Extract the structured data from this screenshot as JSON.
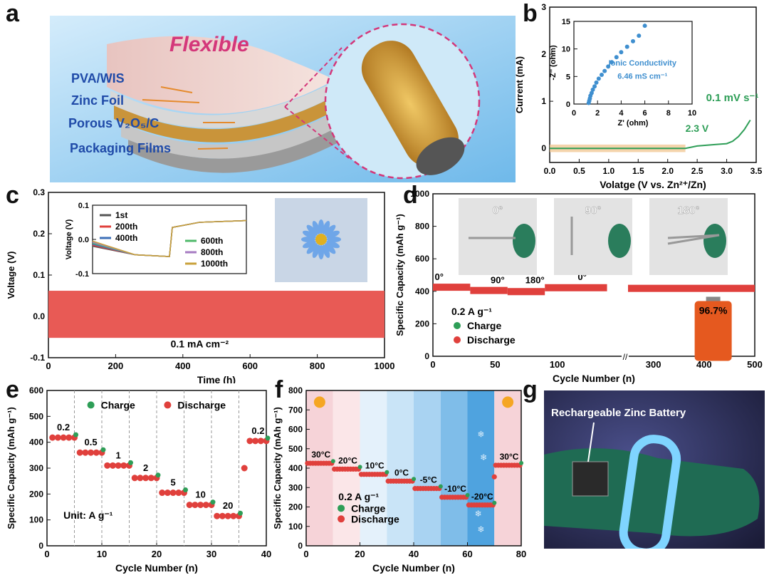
{
  "panel_letters": {
    "a": "a",
    "b": "b",
    "c": "c",
    "d": "d",
    "e": "e",
    "f": "f",
    "g": "g"
  },
  "panel_a": {
    "title": "Flexible",
    "layers": [
      "PVA/WIS",
      "Zinc Foil",
      "Porous V₂O₅/C",
      "Packaging Films"
    ]
  },
  "panel_g": {
    "label": "Rechargeable Zinc Battery"
  },
  "panel_c": {
    "image_labels": {
      "current": "0.1 mA cm⁻²"
    },
    "inset_legend": [
      "1st",
      "200th",
      "400th",
      "600th",
      "800th",
      "1000th"
    ],
    "inset_colors": [
      "#555555",
      "#e0403c",
      "#3d6fb8",
      "#4fb96a",
      "#a67bc2",
      "#c9a13a"
    ]
  },
  "panel_d": {
    "photo_angles": [
      "0°",
      "90°",
      "180°"
    ],
    "segment_angles": [
      "0°",
      "90°",
      "180°",
      "0°"
    ],
    "rate": "0.2 A g⁻¹",
    "legend": [
      "Charge",
      "Discharge"
    ],
    "retention": "96.7%"
  },
  "panel_e": {
    "legend": [
      "Charge",
      "Discharge"
    ],
    "unit": "Unit: A g⁻¹",
    "rate_labels": [
      "0.2",
      "0.5",
      "1",
      "2",
      "5",
      "10",
      "20",
      "0.2"
    ]
  },
  "panel_f": {
    "rate": "0.2 A g⁻¹",
    "legend": [
      "Charge",
      "Discharge"
    ],
    "temp_labels": [
      "30°C",
      "20°C",
      "10°C",
      "0°C",
      "-5°C",
      "-10°C",
      "-20°C",
      "30°C"
    ]
  },
  "chart_data": [
    {
      "id": "b",
      "type": "line",
      "xlabel": "Volatge (V vs. Zn²⁺/Zn)",
      "ylabel": "Current (mA)",
      "xlim": [
        0.0,
        3.5
      ],
      "ylim": [
        -0.3,
        3.0
      ],
      "xticks": [
        "0.0",
        "0.5",
        "1.0",
        "1.5",
        "2.0",
        "2.5",
        "3.0",
        "3.5"
      ],
      "yticks": [
        "0",
        "1",
        "2",
        "3"
      ],
      "annotations": [
        "0.1 mV s⁻¹",
        "2.3 V"
      ],
      "series": [
        {
          "values_x": [
            0.0,
            0.5,
            1.0,
            1.5,
            2.0,
            2.3,
            2.5,
            2.8,
            3.0,
            3.1,
            3.2,
            3.3,
            3.4
          ],
          "values_y": [
            0.0,
            0.0,
            0.0,
            0.0,
            0.0,
            0.0,
            0.05,
            0.08,
            0.1,
            0.15,
            0.25,
            0.4,
            0.6
          ]
        }
      ],
      "inset": {
        "type": "scatter",
        "xlabel": "Z' (ohm)",
        "ylabel": "-Z'' (ohm)",
        "xlim": [
          0,
          10
        ],
        "ylim": [
          0,
          15
        ],
        "xticks": [
          "0",
          "2",
          "4",
          "6",
          "8",
          "10"
        ],
        "yticks": [
          "0",
          "5",
          "10",
          "15"
        ],
        "annotation": "Ionic Conductivity",
        "annotation2": "6.46 mS cm⁻¹",
        "x": [
          1.25,
          1.3,
          1.35,
          1.4,
          1.5,
          1.6,
          1.75,
          1.9,
          2.1,
          2.35,
          2.6,
          2.9,
          3.2,
          3.6,
          4.0,
          4.5,
          5.0,
          5.5,
          6.0
        ],
        "y": [
          0.2,
          0.6,
          1.0,
          1.5,
          2.0,
          2.6,
          3.2,
          3.9,
          4.6,
          5.3,
          6.0,
          6.8,
          7.6,
          8.5,
          9.4,
          10.4,
          11.4,
          12.4,
          14.2
        ]
      }
    },
    {
      "id": "c",
      "type": "line",
      "xlabel": "Time (h)",
      "ylabel": "Voltage (V)",
      "xlim": [
        0,
        1000
      ],
      "ylim": [
        -0.1,
        0.3
      ],
      "xticks": [
        "0",
        "200",
        "400",
        "600",
        "800",
        "1000"
      ],
      "yticks": [
        "-0.1",
        "0.0",
        "0.1",
        "0.2",
        "0.3"
      ],
      "band": {
        "upper": 0.062,
        "lower": -0.052
      },
      "inset": {
        "ylabel": "Voltage (V)",
        "ylim": [
          -0.1,
          0.1
        ],
        "yticks": [
          "-0.1",
          "0.0",
          "0.1"
        ]
      }
    },
    {
      "id": "d",
      "type": "scatter",
      "xlabel": "Cycle Number (n)",
      "ylabel": "Specific Capacity (mAh g⁻¹)",
      "ylim": [
        0,
        1000
      ],
      "xticks": [
        "0",
        "50",
        "100",
        "300",
        "400",
        "500"
      ],
      "yticks": [
        "0",
        "200",
        "400",
        "600",
        "800",
        "1000"
      ],
      "segments": [
        {
          "from": 0,
          "to": 30,
          "value": 425
        },
        {
          "from": 30,
          "to": 60,
          "value": 405
        },
        {
          "from": 60,
          "to": 90,
          "value": 398
        },
        {
          "from": 90,
          "to": 140,
          "value": 422
        },
        {
          "from": 250,
          "to": 500,
          "value": 418
        }
      ]
    },
    {
      "id": "e",
      "type": "scatter",
      "xlabel": "Cycle Number (n)",
      "ylabel": "Specific Capacity (mAh g⁻¹)",
      "xlim": [
        0,
        40
      ],
      "ylim": [
        0,
        600
      ],
      "xticks": [
        "0",
        "10",
        "20",
        "30",
        "40"
      ],
      "yticks": [
        "0",
        "100",
        "200",
        "300",
        "400",
        "500",
        "600"
      ],
      "steps": [
        {
          "from": 1,
          "to": 5,
          "value": 418
        },
        {
          "from": 6,
          "to": 10,
          "value": 360
        },
        {
          "from": 11,
          "to": 15,
          "value": 310
        },
        {
          "from": 16,
          "to": 20,
          "value": 262
        },
        {
          "from": 21,
          "to": 25,
          "value": 205
        },
        {
          "from": 26,
          "to": 30,
          "value": 158
        },
        {
          "from": 31,
          "to": 35,
          "value": 115
        },
        {
          "from": 37,
          "to": 40,
          "value": 405
        }
      ],
      "outlier": {
        "x": 36,
        "y": 300
      }
    },
    {
      "id": "f",
      "type": "scatter",
      "xlabel": "Cycle Number (n)",
      "ylabel": "Specific Capacity (mAh g⁻¹)",
      "xlim": [
        0,
        80
      ],
      "ylim": [
        0,
        800
      ],
      "xticks": [
        "0",
        "20",
        "40",
        "60",
        "80"
      ],
      "yticks": [
        "0",
        "100",
        "200",
        "300",
        "400",
        "500",
        "600",
        "700",
        "800"
      ],
      "steps": [
        {
          "from": 1,
          "to": 10,
          "value": 425
        },
        {
          "from": 11,
          "to": 20,
          "value": 395
        },
        {
          "from": 21,
          "to": 30,
          "value": 368
        },
        {
          "from": 31,
          "to": 40,
          "value": 333
        },
        {
          "from": 41,
          "to": 50,
          "value": 295
        },
        {
          "from": 51,
          "to": 60,
          "value": 250
        },
        {
          "from": 61,
          "to": 70,
          "value": 210
        },
        {
          "from": 71,
          "to": 80,
          "value": 415
        }
      ],
      "outlier": {
        "x": 70,
        "y": 355
      }
    }
  ]
}
